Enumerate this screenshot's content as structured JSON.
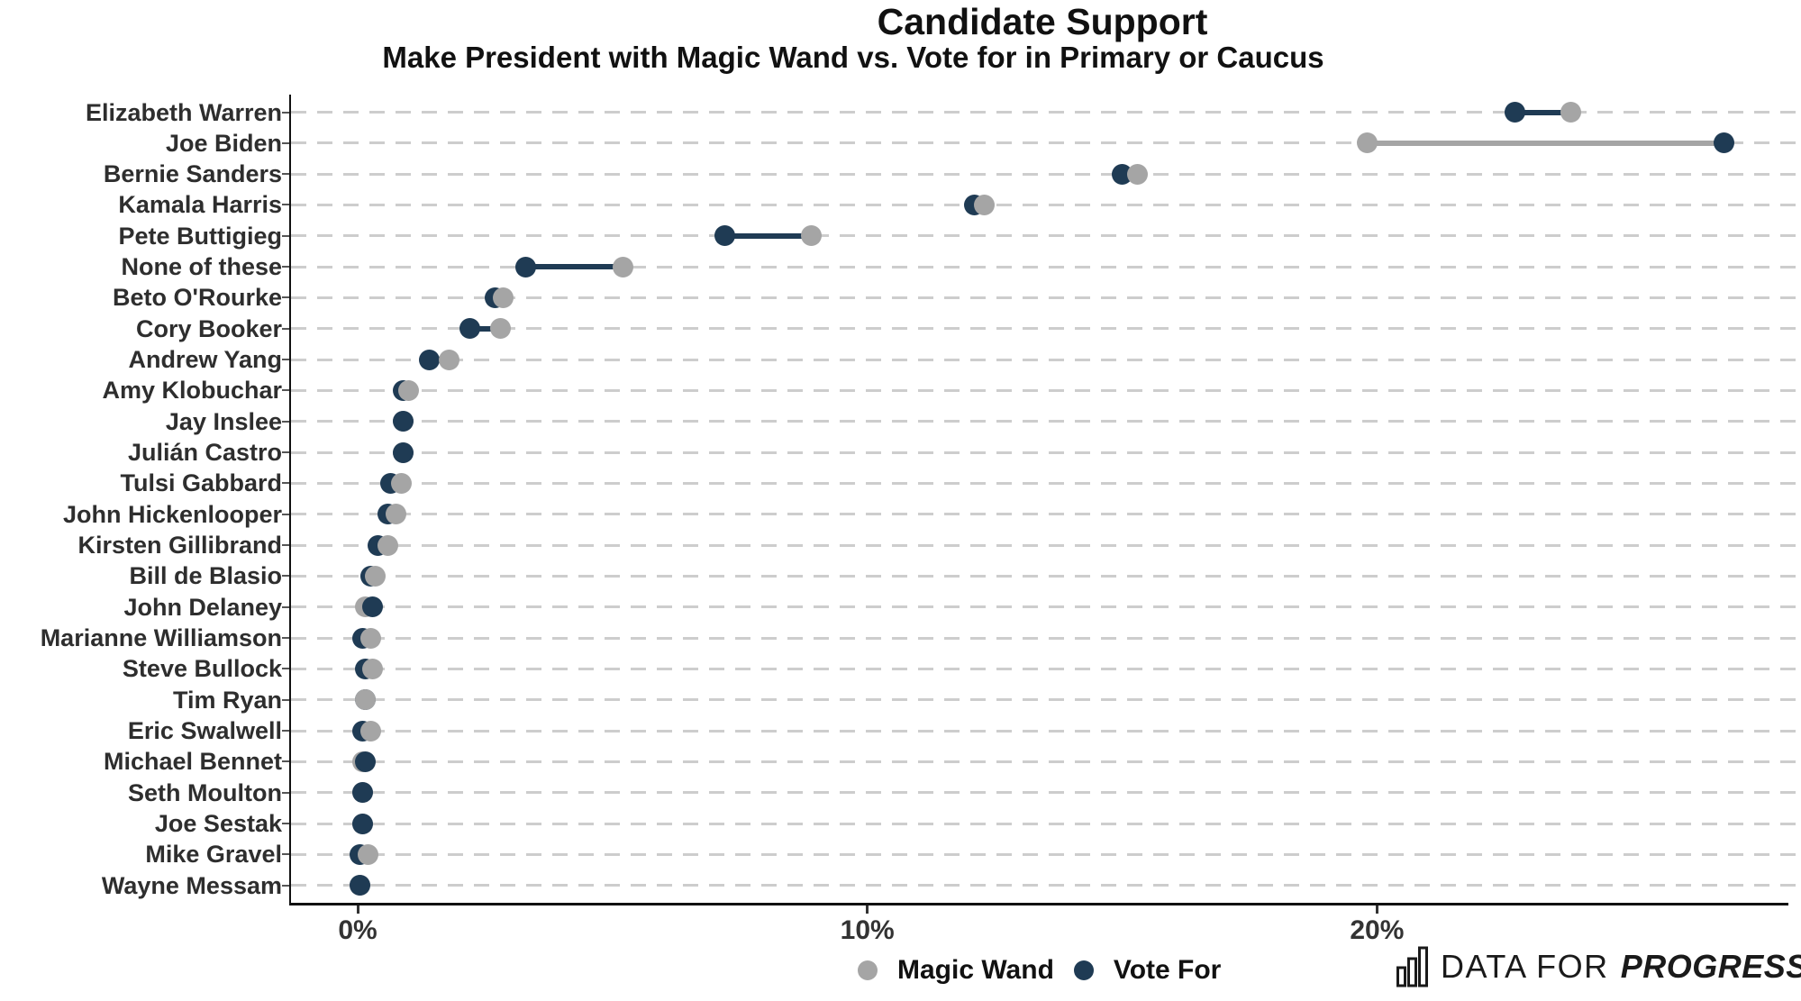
{
  "title": "Candidate Support",
  "subtitle": "Make President with Magic Wand vs. Vote for in Primary or Caucus",
  "legend": {
    "items": [
      {
        "label": "Magic Wand",
        "series": "wand"
      },
      {
        "label": "Vote For",
        "series": "vote"
      }
    ]
  },
  "branding": {
    "prefix": "DATA FOR",
    "suffix": "PROGRESS",
    "icon": "bar-chart-icon"
  },
  "colors": {
    "wand": "#a5a5a5",
    "vote": "#1f3b54",
    "grid": "#cdcdcd",
    "axis": "#111111",
    "category_label": "#2e2e2e",
    "tick_label": "#333333"
  },
  "chart_data": {
    "type": "scatter",
    "variant": "dumbbell-dot-plot",
    "title": "Candidate Support",
    "subtitle": "Make President with Magic Wand vs. Vote for in Primary or Caucus",
    "units": "%",
    "xlabel": "",
    "ylabel": "",
    "xlim": [
      -1.3,
      28.3
    ],
    "grid": "dashed-horizontal",
    "legend_position": "bottom-center",
    "series_names": [
      "Magic Wand",
      "Vote For"
    ],
    "x_ticks": [
      {
        "value": 0,
        "label": "0%"
      },
      {
        "value": 10,
        "label": "10%"
      },
      {
        "value": 20,
        "label": "20%"
      }
    ],
    "rows": [
      {
        "name": "Elizabeth Warren",
        "wand": 23.8,
        "vote": 22.7
      },
      {
        "name": "Joe Biden",
        "wand": 19.8,
        "vote": 26.8
      },
      {
        "name": "Bernie Sanders",
        "wand": 15.3,
        "vote": 15.0
      },
      {
        "name": "Kamala Harris",
        "wand": 12.3,
        "vote": 12.1
      },
      {
        "name": "Pete Buttigieg",
        "wand": 8.9,
        "vote": 7.2
      },
      {
        "name": "None of these",
        "wand": 5.2,
        "vote": 3.3
      },
      {
        "name": "Beto O'Rourke",
        "wand": 2.85,
        "vote": 2.7
      },
      {
        "name": "Cory Booker",
        "wand": 2.8,
        "vote": 2.2
      },
      {
        "name": "Andrew Yang",
        "wand": 1.8,
        "vote": 1.4
      },
      {
        "name": "Amy Klobuchar",
        "wand": 1.0,
        "vote": 0.9
      },
      {
        "name": "Jay Inslee",
        "wand": 0.9,
        "vote": 0.9,
        "front": "vote"
      },
      {
        "name": "Julián Castro",
        "wand": 0.9,
        "vote": 0.9,
        "front": "vote"
      },
      {
        "name": "Tulsi Gabbard",
        "wand": 0.85,
        "vote": 0.65
      },
      {
        "name": "John Hickenlooper",
        "wand": 0.75,
        "vote": 0.6
      },
      {
        "name": "Kirsten Gillibrand",
        "wand": 0.6,
        "vote": 0.4
      },
      {
        "name": "Bill de Blasio",
        "wand": 0.35,
        "vote": 0.25
      },
      {
        "name": "John Delaney",
        "wand": 0.15,
        "vote": 0.3
      },
      {
        "name": "Marianne Williamson",
        "wand": 0.25,
        "vote": 0.1
      },
      {
        "name": "Steve Bullock",
        "wand": 0.3,
        "vote": 0.15
      },
      {
        "name": "Tim Ryan",
        "wand": 0.15,
        "vote": 0.15,
        "front": "wand"
      },
      {
        "name": "Eric Swalwell",
        "wand": 0.25,
        "vote": 0.1
      },
      {
        "name": "Michael Bennet",
        "wand": 0.1,
        "vote": 0.15
      },
      {
        "name": "Seth Moulton",
        "wand": 0.1,
        "vote": 0.1,
        "front": "vote"
      },
      {
        "name": "Joe Sestak",
        "wand": 0.1,
        "vote": 0.1,
        "front": "vote"
      },
      {
        "name": "Mike Gravel",
        "wand": 0.2,
        "vote": 0.05
      },
      {
        "name": "Wayne Messam",
        "wand": 0.05,
        "vote": 0.05,
        "front": "vote"
      }
    ]
  }
}
